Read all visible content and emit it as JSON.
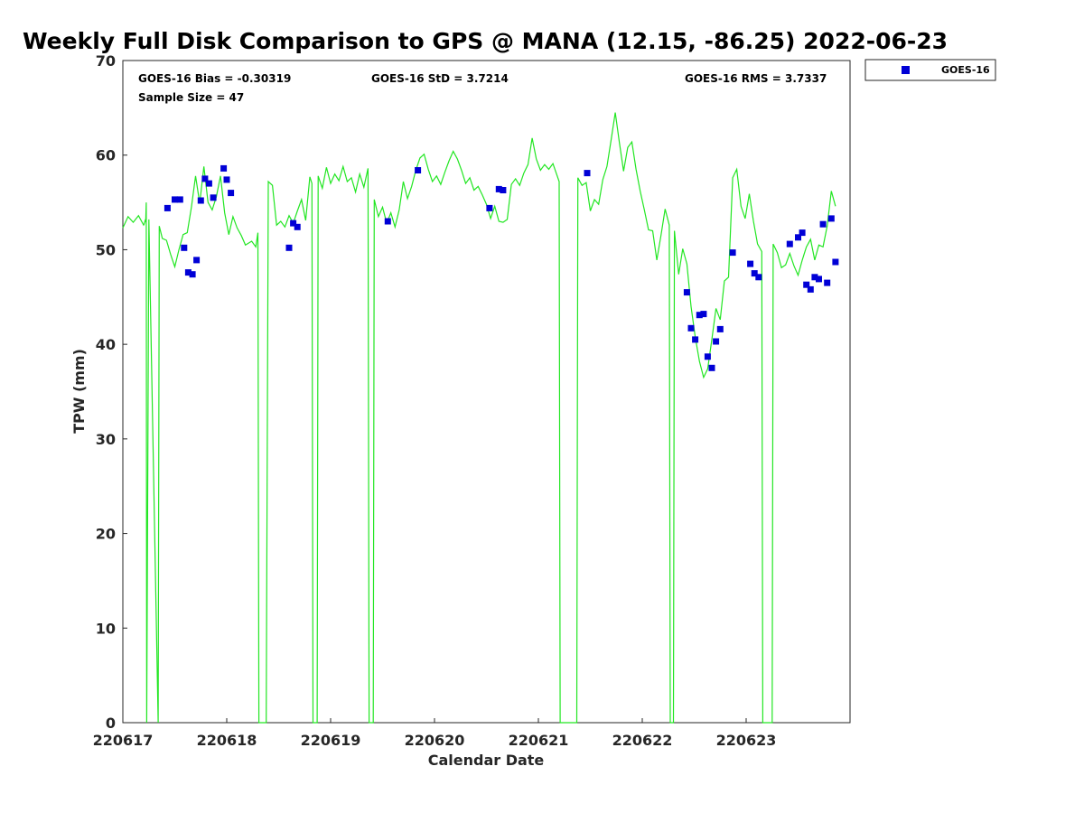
{
  "chart_data": {
    "type": "line+scatter",
    "title": "Weekly Full Disk Comparison to GPS @ MANA (12.15, -86.25) 2022-06-23",
    "xlabel": "Calendar Date",
    "ylabel": "TPW (mm)",
    "ylim": [
      0,
      70
    ],
    "xlim": [
      0,
      7
    ],
    "yticks": [
      0,
      10,
      20,
      30,
      40,
      50,
      60,
      70
    ],
    "xticks": [
      {
        "value": 0,
        "label": "220617"
      },
      {
        "value": 1,
        "label": "220618"
      },
      {
        "value": 2,
        "label": "220619"
      },
      {
        "value": 3,
        "label": "220620"
      },
      {
        "value": 4,
        "label": "220621"
      },
      {
        "value": 5,
        "label": "220622"
      },
      {
        "value": 6,
        "label": "220623"
      }
    ],
    "stats": {
      "bias": "GOES-16 Bias = -0.30319",
      "std": "GOES-16 StD = 3.7214",
      "rms": "GOES-16 RMS = 3.7337",
      "sample": "Sample Size = 47"
    },
    "legend": [
      {
        "name": "GOES-16",
        "color": "#0000d6",
        "marker": "square"
      }
    ],
    "gps_color": "#22e622",
    "gps_series": [
      [
        0.0,
        52.3
      ],
      [
        0.05,
        53.5
      ],
      [
        0.1,
        52.9
      ],
      [
        0.15,
        53.6
      ],
      [
        0.2,
        52.6
      ],
      [
        0.25,
        53.2
      ],
      [
        0.22,
        53.0
      ],
      [
        0.205,
        52.7
      ],
      [
        0.215,
        53.1
      ],
      [
        0.225,
        55.0
      ],
      [
        0.23,
        0
      ],
      [
        0.34,
        0
      ],
      [
        0.35,
        52.5
      ],
      [
        0.38,
        51.2
      ],
      [
        0.42,
        51.0
      ],
      [
        0.46,
        49.5
      ],
      [
        0.5,
        48.2
      ],
      [
        0.54,
        50.0
      ],
      [
        0.58,
        51.6
      ],
      [
        0.62,
        51.8
      ],
      [
        0.66,
        54.5
      ],
      [
        0.7,
        57.8
      ],
      [
        0.74,
        54.9
      ],
      [
        0.78,
        58.8
      ],
      [
        0.82,
        55.0
      ],
      [
        0.86,
        54.2
      ],
      [
        0.9,
        55.6
      ],
      [
        0.94,
        57.8
      ],
      [
        0.98,
        53.9
      ],
      [
        1.02,
        51.6
      ],
      [
        1.06,
        53.5
      ],
      [
        1.1,
        52.3
      ],
      [
        1.14,
        51.5
      ],
      [
        1.18,
        50.5
      ],
      [
        1.24,
        50.9
      ],
      [
        1.28,
        50.3
      ],
      [
        1.3,
        51.8
      ],
      [
        1.31,
        0
      ],
      [
        1.38,
        0
      ],
      [
        1.4,
        57.2
      ],
      [
        1.44,
        56.8
      ],
      [
        1.48,
        52.6
      ],
      [
        1.52,
        53.0
      ],
      [
        1.56,
        52.4
      ],
      [
        1.6,
        53.6
      ],
      [
        1.64,
        52.8
      ],
      [
        1.68,
        54.1
      ],
      [
        1.72,
        55.3
      ],
      [
        1.76,
        53.1
      ],
      [
        1.8,
        57.7
      ],
      [
        1.82,
        57.0
      ],
      [
        1.83,
        0
      ],
      [
        1.87,
        0
      ],
      [
        1.88,
        57.8
      ],
      [
        1.92,
        56.5
      ],
      [
        1.96,
        58.7
      ],
      [
        2.0,
        57.0
      ],
      [
        2.04,
        58.0
      ],
      [
        2.08,
        57.3
      ],
      [
        2.12,
        58.8
      ],
      [
        2.16,
        57.2
      ],
      [
        2.2,
        57.6
      ],
      [
        2.24,
        56.1
      ],
      [
        2.28,
        58.0
      ],
      [
        2.32,
        56.6
      ],
      [
        2.36,
        58.6
      ],
      [
        2.37,
        0
      ],
      [
        2.41,
        0
      ],
      [
        2.42,
        55.3
      ],
      [
        2.46,
        53.5
      ],
      [
        2.5,
        54.5
      ],
      [
        2.54,
        52.8
      ],
      [
        2.58,
        53.9
      ],
      [
        2.62,
        52.4
      ],
      [
        2.66,
        54.2
      ],
      [
        2.7,
        57.2
      ],
      [
        2.74,
        55.4
      ],
      [
        2.78,
        56.7
      ],
      [
        2.82,
        58.4
      ],
      [
        2.86,
        59.7
      ],
      [
        2.9,
        60.1
      ],
      [
        2.94,
        58.5
      ],
      [
        2.98,
        57.2
      ],
      [
        3.02,
        57.8
      ],
      [
        3.06,
        56.9
      ],
      [
        3.1,
        58.2
      ],
      [
        3.14,
        59.4
      ],
      [
        3.18,
        60.4
      ],
      [
        3.22,
        59.6
      ],
      [
        3.26,
        58.4
      ],
      [
        3.3,
        57.0
      ],
      [
        3.34,
        57.6
      ],
      [
        3.38,
        56.3
      ],
      [
        3.42,
        56.7
      ],
      [
        3.46,
        55.8
      ],
      [
        3.5,
        54.8
      ],
      [
        3.54,
        53.3
      ],
      [
        3.58,
        54.6
      ],
      [
        3.62,
        53.0
      ],
      [
        3.66,
        52.9
      ],
      [
        3.7,
        53.2
      ],
      [
        3.74,
        56.9
      ],
      [
        3.78,
        57.5
      ],
      [
        3.82,
        56.8
      ],
      [
        3.86,
        58.1
      ],
      [
        3.9,
        59.0
      ],
      [
        3.94,
        61.8
      ],
      [
        3.98,
        59.6
      ],
      [
        4.02,
        58.4
      ],
      [
        4.06,
        59.0
      ],
      [
        4.1,
        58.5
      ],
      [
        4.14,
        59.1
      ],
      [
        4.2,
        57.2
      ],
      [
        4.21,
        0
      ],
      [
        4.37,
        0
      ],
      [
        4.38,
        57.6
      ],
      [
        4.42,
        56.8
      ],
      [
        4.46,
        57.1
      ],
      [
        4.5,
        54.1
      ],
      [
        4.54,
        55.3
      ],
      [
        4.58,
        54.8
      ],
      [
        4.62,
        57.4
      ],
      [
        4.66,
        58.8
      ],
      [
        4.7,
        61.6
      ],
      [
        4.74,
        64.5
      ],
      [
        4.78,
        61.3
      ],
      [
        4.82,
        58.3
      ],
      [
        4.86,
        60.8
      ],
      [
        4.9,
        61.4
      ],
      [
        4.94,
        58.5
      ],
      [
        4.98,
        56.2
      ],
      [
        5.02,
        54.2
      ],
      [
        5.06,
        52.1
      ],
      [
        5.1,
        52.0
      ],
      [
        5.14,
        48.9
      ],
      [
        5.18,
        51.5
      ],
      [
        5.22,
        54.3
      ],
      [
        5.26,
        52.6
      ],
      [
        5.27,
        0
      ],
      [
        5.3,
        0
      ],
      [
        5.31,
        52.0
      ],
      [
        5.35,
        47.4
      ],
      [
        5.39,
        50.1
      ],
      [
        5.43,
        48.5
      ],
      [
        5.47,
        44.0
      ],
      [
        5.51,
        40.8
      ],
      [
        5.55,
        38.2
      ],
      [
        5.59,
        36.5
      ],
      [
        5.63,
        37.4
      ],
      [
        5.67,
        40.5
      ],
      [
        5.71,
        43.8
      ],
      [
        5.75,
        42.6
      ],
      [
        5.79,
        46.7
      ],
      [
        5.83,
        47.1
      ],
      [
        5.87,
        57.6
      ],
      [
        5.91,
        58.5
      ],
      [
        5.95,
        54.6
      ],
      [
        5.99,
        53.3
      ],
      [
        6.03,
        55.9
      ],
      [
        6.07,
        53.0
      ],
      [
        6.11,
        50.6
      ],
      [
        6.15,
        49.8
      ],
      [
        6.16,
        0
      ],
      [
        6.25,
        0
      ],
      [
        6.26,
        50.6
      ],
      [
        6.3,
        49.7
      ],
      [
        6.34,
        48.1
      ],
      [
        6.38,
        48.4
      ],
      [
        6.42,
        49.6
      ],
      [
        6.46,
        48.3
      ],
      [
        6.5,
        47.3
      ],
      [
        6.54,
        48.9
      ],
      [
        6.58,
        50.3
      ],
      [
        6.62,
        51.1
      ],
      [
        6.66,
        48.9
      ],
      [
        6.7,
        50.5
      ],
      [
        6.74,
        50.3
      ],
      [
        6.78,
        52.5
      ],
      [
        6.82,
        56.2
      ],
      [
        6.86,
        54.6
      ]
    ],
    "goes_points": [
      [
        0.43,
        54.4
      ],
      [
        0.5,
        55.3
      ],
      [
        0.55,
        55.3
      ],
      [
        0.59,
        50.2
      ],
      [
        0.63,
        47.6
      ],
      [
        0.67,
        47.4
      ],
      [
        0.71,
        48.9
      ],
      [
        0.75,
        55.2
      ],
      [
        0.79,
        57.5
      ],
      [
        0.83,
        57.0
      ],
      [
        0.87,
        55.5
      ],
      [
        0.97,
        58.6
      ],
      [
        1.0,
        57.4
      ],
      [
        1.04,
        56.0
      ],
      [
        1.6,
        50.2
      ],
      [
        1.64,
        52.8
      ],
      [
        1.68,
        52.4
      ],
      [
        2.55,
        53.0
      ],
      [
        2.84,
        58.4
      ],
      [
        3.53,
        54.4
      ],
      [
        3.62,
        56.4
      ],
      [
        3.66,
        56.3
      ],
      [
        4.47,
        58.1
      ],
      [
        5.43,
        45.5
      ],
      [
        5.47,
        41.7
      ],
      [
        5.51,
        40.5
      ],
      [
        5.55,
        43.1
      ],
      [
        5.59,
        43.2
      ],
      [
        5.63,
        38.7
      ],
      [
        5.67,
        37.5
      ],
      [
        5.71,
        40.3
      ],
      [
        5.75,
        41.6
      ],
      [
        5.87,
        49.7
      ],
      [
        6.04,
        48.5
      ],
      [
        6.08,
        47.5
      ],
      [
        6.12,
        47.1
      ],
      [
        6.42,
        50.6
      ],
      [
        6.5,
        51.3
      ],
      [
        6.54,
        51.8
      ],
      [
        6.58,
        46.3
      ],
      [
        6.62,
        45.8
      ],
      [
        6.66,
        47.1
      ],
      [
        6.7,
        46.9
      ],
      [
        6.74,
        52.7
      ],
      [
        6.78,
        46.5
      ],
      [
        6.82,
        53.3
      ],
      [
        6.86,
        48.7
      ]
    ]
  }
}
